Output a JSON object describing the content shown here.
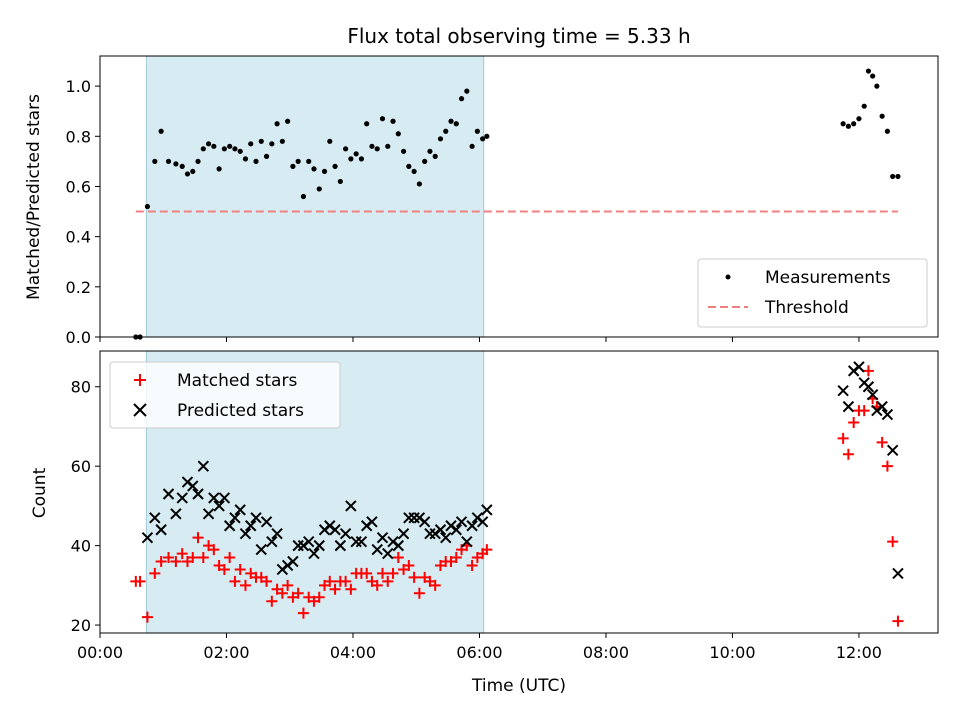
{
  "chart_data": {
    "title": "Flux total observing time = 5.33 h",
    "xlabel": "Time (UTC)",
    "x_unit": "hours UTC",
    "xlim": [
      "00:00",
      "13:15"
    ],
    "xticks": [
      "00:00",
      "02:00",
      "04:00",
      "06:00",
      "08:00",
      "10:00",
      "12:00"
    ],
    "highlight_span": {
      "start": "00:44",
      "end": "06:04",
      "color": "#add8e6"
    },
    "panels": [
      {
        "type": "scatter",
        "ylabel": "Matched/Predicted stars",
        "ylim": [
          0,
          1.12
        ],
        "yticks": [
          "0.0",
          "0.2",
          "0.4",
          "0.6",
          "0.8",
          "1.0"
        ],
        "legend_position": "lower right",
        "series": [
          {
            "name": "Measurements",
            "marker": "dot",
            "color": "#000000",
            "points": [
              [
                "00:34",
                0.0
              ],
              [
                "00:38",
                0.0
              ],
              [
                "00:45",
                0.52
              ],
              [
                "00:52",
                0.7
              ],
              [
                "00:58",
                0.82
              ],
              [
                "01:05",
                0.7
              ],
              [
                "01:12",
                0.69
              ],
              [
                "01:18",
                0.68
              ],
              [
                "01:23",
                0.65
              ],
              [
                "01:28",
                0.66
              ],
              [
                "01:33",
                0.7
              ],
              [
                "01:38",
                0.75
              ],
              [
                "01:43",
                0.77
              ],
              [
                "01:48",
                0.76
              ],
              [
                "01:53",
                0.67
              ],
              [
                "01:58",
                0.75
              ],
              [
                "02:03",
                0.76
              ],
              [
                "02:08",
                0.75
              ],
              [
                "02:13",
                0.74
              ],
              [
                "02:18",
                0.71
              ],
              [
                "02:23",
                0.77
              ],
              [
                "02:28",
                0.7
              ],
              [
                "02:33",
                0.78
              ],
              [
                "02:38",
                0.72
              ],
              [
                "02:43",
                0.77
              ],
              [
                "02:48",
                0.85
              ],
              [
                "02:53",
                0.78
              ],
              [
                "02:58",
                0.86
              ],
              [
                "03:03",
                0.68
              ],
              [
                "03:08",
                0.7
              ],
              [
                "03:13",
                0.56
              ],
              [
                "03:18",
                0.7
              ],
              [
                "03:23",
                0.67
              ],
              [
                "03:28",
                0.59
              ],
              [
                "03:33",
                0.66
              ],
              [
                "03:38",
                0.78
              ],
              [
                "03:43",
                0.68
              ],
              [
                "03:48",
                0.62
              ],
              [
                "03:53",
                0.75
              ],
              [
                "03:58",
                0.71
              ],
              [
                "04:03",
                0.73
              ],
              [
                "04:08",
                0.71
              ],
              [
                "04:13",
                0.85
              ],
              [
                "04:18",
                0.76
              ],
              [
                "04:23",
                0.75
              ],
              [
                "04:28",
                0.87
              ],
              [
                "04:33",
                0.76
              ],
              [
                "04:38",
                0.86
              ],
              [
                "04:43",
                0.81
              ],
              [
                "04:48",
                0.74
              ],
              [
                "04:53",
                0.68
              ],
              [
                "04:58",
                0.66
              ],
              [
                "05:03",
                0.61
              ],
              [
                "05:08",
                0.7
              ],
              [
                "05:13",
                0.74
              ],
              [
                "05:18",
                0.72
              ],
              [
                "05:23",
                0.79
              ],
              [
                "05:28",
                0.82
              ],
              [
                "05:33",
                0.86
              ],
              [
                "05:38",
                0.85
              ],
              [
                "05:43",
                0.95
              ],
              [
                "05:48",
                0.98
              ],
              [
                "05:53",
                0.76
              ],
              [
                "05:58",
                0.82
              ],
              [
                "06:03",
                0.79
              ],
              [
                "06:07",
                0.8
              ],
              [
                "11:45",
                0.85
              ],
              [
                "11:50",
                0.84
              ],
              [
                "11:55",
                0.85
              ],
              [
                "12:00",
                0.87
              ],
              [
                "12:05",
                0.92
              ],
              [
                "12:09",
                1.06
              ],
              [
                "12:13",
                1.04
              ],
              [
                "12:17",
                1.0
              ],
              [
                "12:22",
                0.88
              ],
              [
                "12:27",
                0.82
              ],
              [
                "12:32",
                0.64
              ],
              [
                "12:37",
                0.64
              ]
            ]
          },
          {
            "name": "Threshold",
            "marker": "dashed-line",
            "color": "#f08080",
            "points": [
              [
                "00:34",
                0.5
              ],
              [
                "12:37",
                0.5
              ]
            ]
          }
        ]
      },
      {
        "type": "scatter",
        "ylabel": "Count",
        "ylim": [
          18,
          89
        ],
        "yticks": [
          "20",
          "40",
          "60",
          "80"
        ],
        "legend_position": "upper left",
        "series": [
          {
            "name": "Matched stars",
            "marker": "plus",
            "color": "#ff0000",
            "points": [
              [
                "00:34",
                31
              ],
              [
                "00:38",
                31
              ],
              [
                "00:45",
                22
              ],
              [
                "00:52",
                33
              ],
              [
                "00:58",
                36
              ],
              [
                "01:05",
                37
              ],
              [
                "01:12",
                36
              ],
              [
                "01:18",
                38
              ],
              [
                "01:23",
                36
              ],
              [
                "01:28",
                37
              ],
              [
                "01:33",
                42
              ],
              [
                "01:38",
                37
              ],
              [
                "01:43",
                40
              ],
              [
                "01:48",
                39
              ],
              [
                "01:53",
                35
              ],
              [
                "01:58",
                34
              ],
              [
                "02:03",
                37
              ],
              [
                "02:08",
                31
              ],
              [
                "02:13",
                34
              ],
              [
                "02:18",
                30
              ],
              [
                "02:23",
                33
              ],
              [
                "02:28",
                32
              ],
              [
                "02:33",
                32
              ],
              [
                "02:38",
                31
              ],
              [
                "02:43",
                26
              ],
              [
                "02:48",
                29
              ],
              [
                "02:53",
                28
              ],
              [
                "02:58",
                30
              ],
              [
                "03:03",
                27
              ],
              [
                "03:08",
                28
              ],
              [
                "03:13",
                23
              ],
              [
                "03:18",
                27
              ],
              [
                "03:23",
                26
              ],
              [
                "03:28",
                27
              ],
              [
                "03:33",
                30
              ],
              [
                "03:38",
                31
              ],
              [
                "03:43",
                29
              ],
              [
                "03:48",
                31
              ],
              [
                "03:53",
                31
              ],
              [
                "03:58",
                29
              ],
              [
                "04:03",
                33
              ],
              [
                "04:08",
                33
              ],
              [
                "04:13",
                33
              ],
              [
                "04:18",
                31
              ],
              [
                "04:23",
                30
              ],
              [
                "04:28",
                33
              ],
              [
                "04:33",
                31
              ],
              [
                "04:38",
                33
              ],
              [
                "04:43",
                37
              ],
              [
                "04:48",
                34
              ],
              [
                "04:53",
                35
              ],
              [
                "04:58",
                32
              ],
              [
                "05:03",
                28
              ],
              [
                "05:08",
                32
              ],
              [
                "05:13",
                31
              ],
              [
                "05:18",
                30
              ],
              [
                "05:23",
                35
              ],
              [
                "05:28",
                36
              ],
              [
                "05:33",
                36
              ],
              [
                "05:38",
                37
              ],
              [
                "05:43",
                39
              ],
              [
                "05:48",
                40
              ],
              [
                "05:53",
                35
              ],
              [
                "05:58",
                37
              ],
              [
                "06:03",
                38
              ],
              [
                "06:07",
                39
              ],
              [
                "11:45",
                67
              ],
              [
                "11:50",
                63
              ],
              [
                "11:55",
                71
              ],
              [
                "12:00",
                74
              ],
              [
                "12:05",
                74
              ],
              [
                "12:09",
                84
              ],
              [
                "12:13",
                77
              ],
              [
                "12:17",
                75
              ],
              [
                "12:22",
                66
              ],
              [
                "12:27",
                60
              ],
              [
                "12:32",
                41
              ],
              [
                "12:37",
                21
              ]
            ]
          },
          {
            "name": "Predicted stars",
            "marker": "x",
            "color": "#000000",
            "points": [
              [
                "00:45",
                42
              ],
              [
                "00:52",
                47
              ],
              [
                "00:58",
                44
              ],
              [
                "01:05",
                53
              ],
              [
                "01:12",
                48
              ],
              [
                "01:18",
                52
              ],
              [
                "01:23",
                56
              ],
              [
                "01:28",
                55
              ],
              [
                "01:33",
                53
              ],
              [
                "01:38",
                60
              ],
              [
                "01:43",
                48
              ],
              [
                "01:48",
                52
              ],
              [
                "01:53",
                50
              ],
              [
                "01:58",
                52
              ],
              [
                "02:03",
                45
              ],
              [
                "02:08",
                47
              ],
              [
                "02:13",
                49
              ],
              [
                "02:18",
                43
              ],
              [
                "02:23",
                45
              ],
              [
                "02:28",
                47
              ],
              [
                "02:33",
                39
              ],
              [
                "02:38",
                46
              ],
              [
                "02:43",
                41
              ],
              [
                "02:48",
                43
              ],
              [
                "02:53",
                34
              ],
              [
                "02:58",
                35
              ],
              [
                "03:03",
                36
              ],
              [
                "03:08",
                40
              ],
              [
                "03:13",
                40
              ],
              [
                "03:18",
                41
              ],
              [
                "03:23",
                38
              ],
              [
                "03:28",
                40
              ],
              [
                "03:33",
                44
              ],
              [
                "03:38",
                45
              ],
              [
                "03:43",
                44
              ],
              [
                "03:48",
                40
              ],
              [
                "03:53",
                43
              ],
              [
                "03:58",
                50
              ],
              [
                "04:03",
                41
              ],
              [
                "04:08",
                41
              ],
              [
                "04:13",
                45
              ],
              [
                "04:18",
                46
              ],
              [
                "04:23",
                39
              ],
              [
                "04:28",
                42
              ],
              [
                "04:33",
                38
              ],
              [
                "04:38",
                41
              ],
              [
                "04:43",
                40
              ],
              [
                "04:48",
                43
              ],
              [
                "04:53",
                47
              ],
              [
                "04:58",
                47
              ],
              [
                "05:03",
                47
              ],
              [
                "05:08",
                46
              ],
              [
                "05:13",
                43
              ],
              [
                "05:18",
                43
              ],
              [
                "05:23",
                44
              ],
              [
                "05:28",
                42
              ],
              [
                "05:33",
                45
              ],
              [
                "05:38",
                44
              ],
              [
                "05:43",
                46
              ],
              [
                "05:48",
                41
              ],
              [
                "05:53",
                45
              ],
              [
                "05:58",
                47
              ],
              [
                "06:03",
                46
              ],
              [
                "06:07",
                49
              ],
              [
                "11:45",
                79
              ],
              [
                "11:50",
                75
              ],
              [
                "11:55",
                84
              ],
              [
                "12:00",
                85
              ],
              [
                "12:05",
                81
              ],
              [
                "12:09",
                80
              ],
              [
                "12:13",
                78
              ],
              [
                "12:17",
                74
              ],
              [
                "12:22",
                75
              ],
              [
                "12:27",
                73
              ],
              [
                "12:32",
                64
              ],
              [
                "12:37",
                33
              ]
            ]
          }
        ]
      }
    ]
  }
}
